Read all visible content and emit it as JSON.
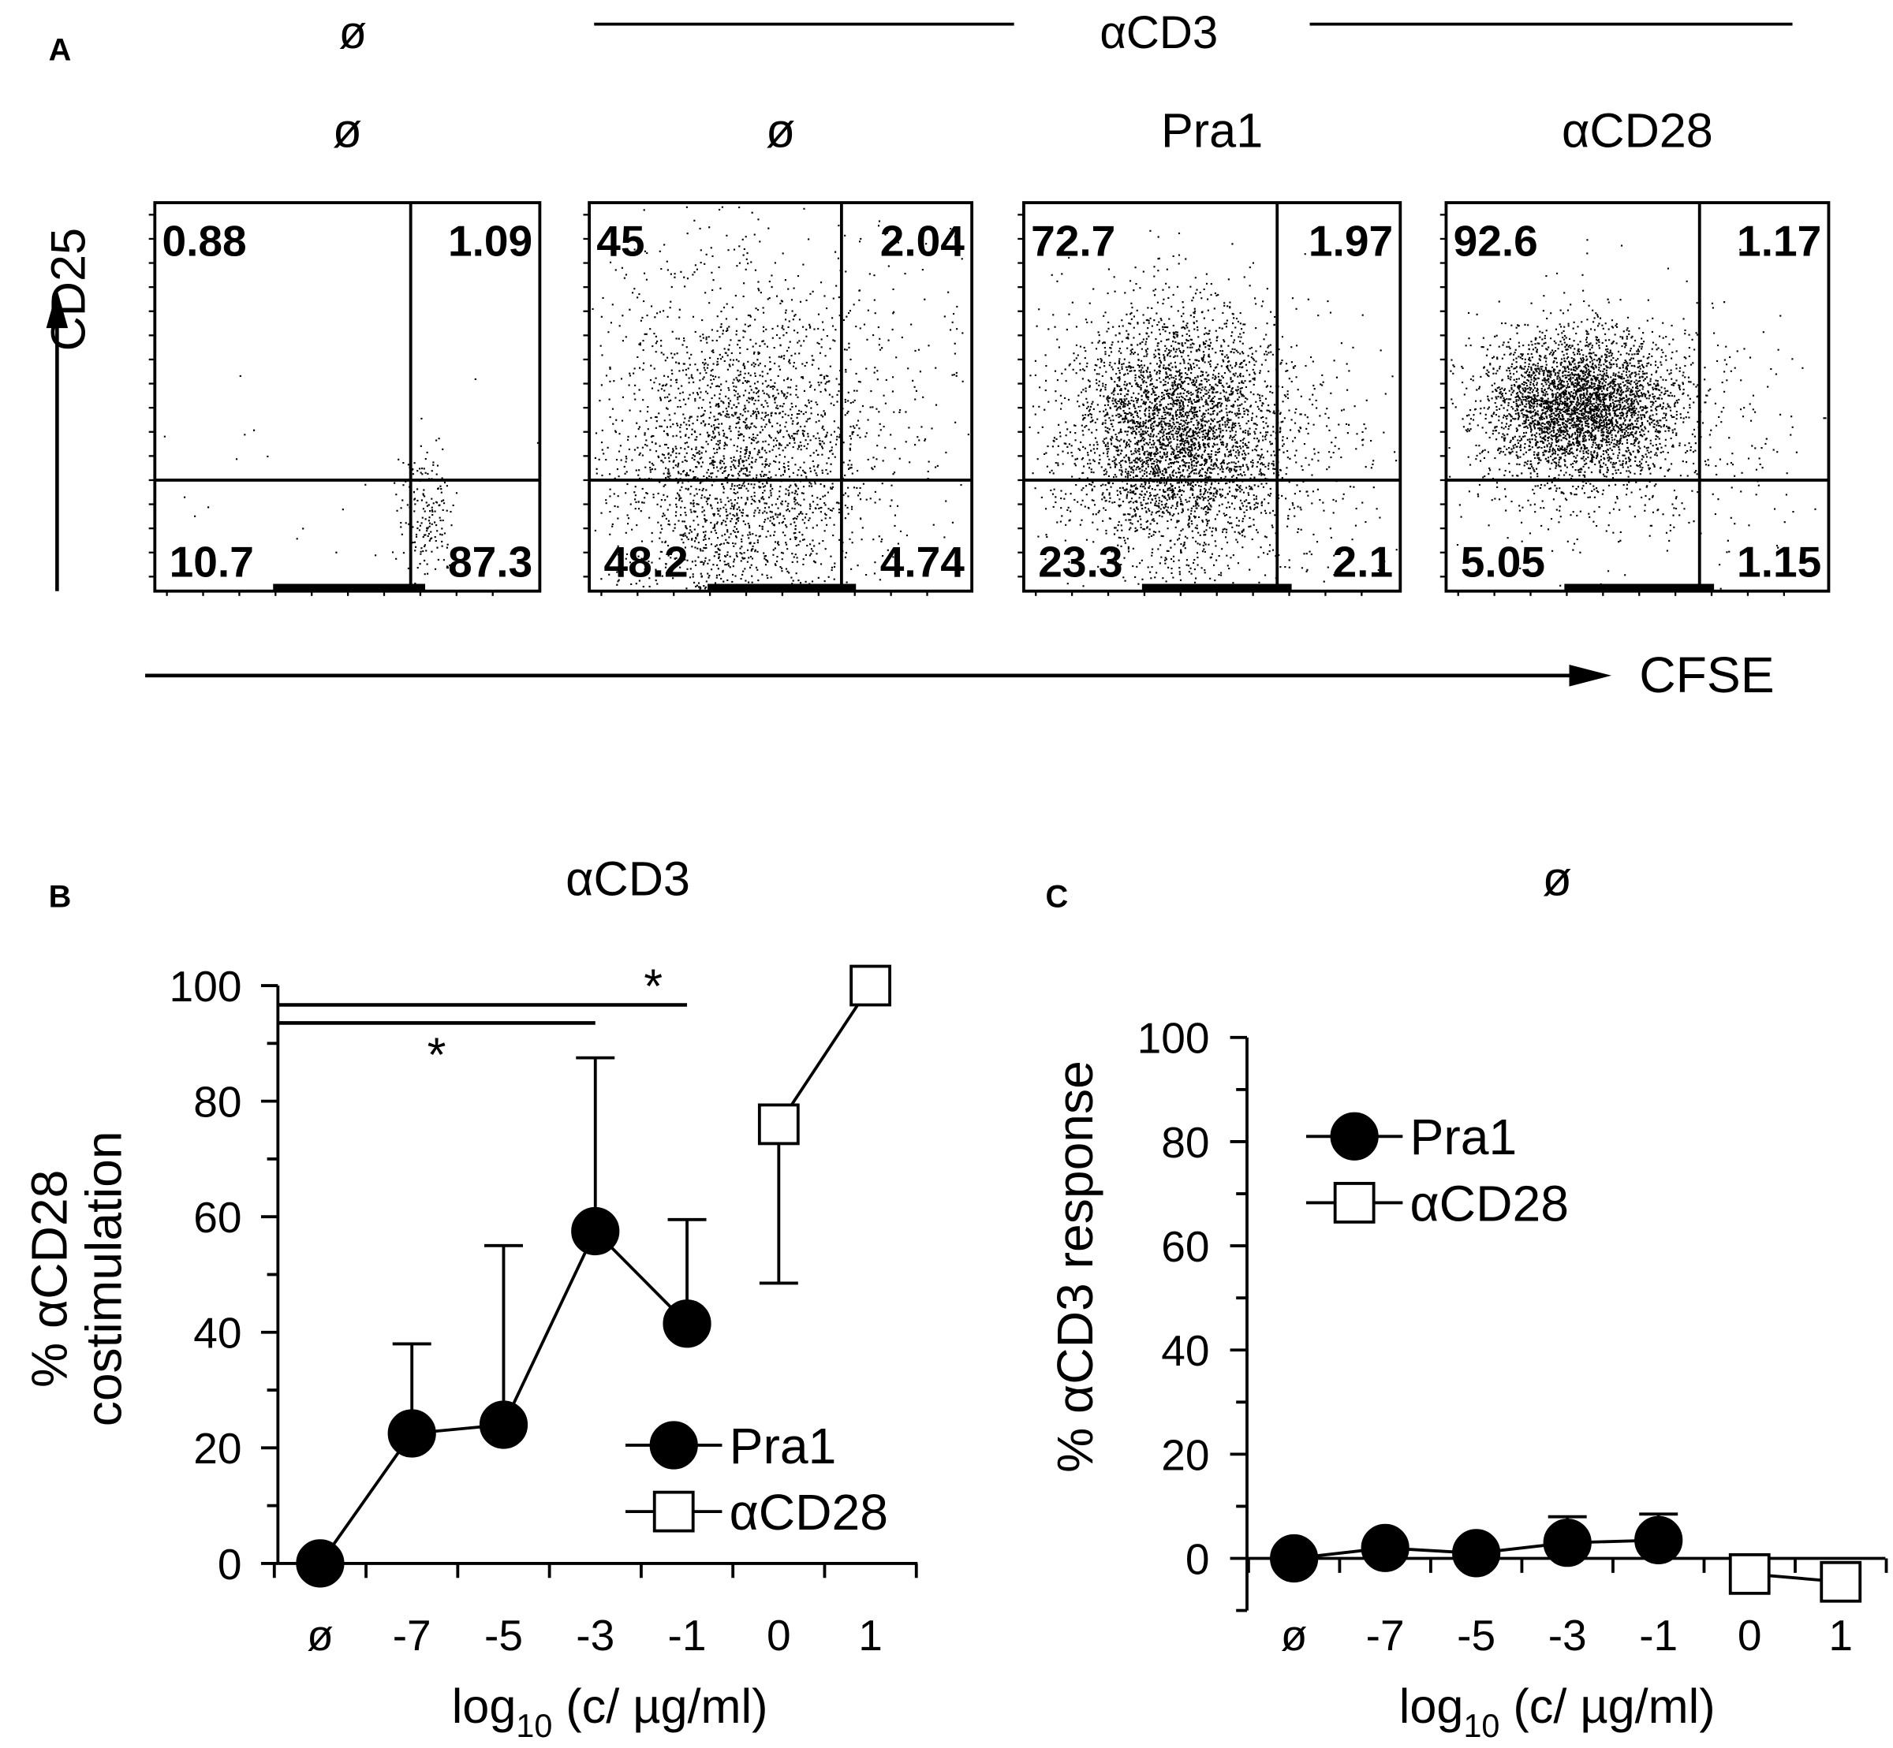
{
  "panel_a": {
    "panel": "A",
    "top_labels": [
      "ø",
      "αCD3"
    ],
    "y_axis_label": "CD25",
    "x_axis_label": "CFSE",
    "plots": [
      {
        "title": "ø",
        "quadrants": {
          "upper_left": 0.88,
          "upper_right": 1.09,
          "lower_left": 10.7,
          "lower_right": 87.3
        }
      },
      {
        "title": "ø",
        "quadrants": {
          "upper_left": 45,
          "upper_right": 2.04,
          "lower_left": 48.2,
          "lower_right": 4.74
        }
      },
      {
        "title": "Pra1",
        "quadrants": {
          "upper_left": 72.7,
          "upper_right": 1.97,
          "lower_left": 23.3,
          "lower_right": 2.1
        }
      },
      {
        "title": "αCD28",
        "quadrants": {
          "upper_left": 92.6,
          "upper_right": 1.17,
          "lower_left": 5.05,
          "lower_right": 1.15
        }
      }
    ]
  },
  "chart_data": [
    {
      "type": "line",
      "panel": "B",
      "title": "αCD3",
      "y_label": [
        "% αCD28",
        "costimulation"
      ],
      "x_label": {
        "main": "log",
        "sub": "10",
        "rest": " (c/ µg/ml)"
      },
      "categories": [
        "ø",
        "-7",
        "-5",
        "-3",
        "-1",
        "0",
        "1"
      ],
      "series": [
        {
          "name": "Pra1",
          "color": "#000000",
          "marker": "circle",
          "error_direction": "up",
          "values": [
            0,
            22.5,
            24,
            57.5,
            41.5,
            null,
            null
          ],
          "errors": [
            null,
            15.5,
            31,
            30,
            18,
            null,
            null
          ]
        },
        {
          "name": "αCD28",
          "color": "#ffffff",
          "marker": "square",
          "error_direction": "down",
          "values": [
            null,
            null,
            null,
            null,
            null,
            76,
            100
          ],
          "errors": [
            null,
            null,
            null,
            null,
            null,
            27.5,
            null
          ]
        }
      ],
      "ylim": [
        0,
        100
      ],
      "yticks": [
        0,
        20,
        40,
        60,
        80,
        100
      ],
      "minor_yticks": [
        10,
        30,
        50,
        70,
        90
      ],
      "legend": "lower right",
      "significance": [
        {
          "label": "*",
          "start": "ø",
          "end": "-1"
        },
        {
          "label": "*",
          "start": "ø",
          "end": "-3"
        }
      ]
    },
    {
      "type": "line",
      "panel": "C",
      "title": "ø",
      "y_label": [
        "% αCD3 response"
      ],
      "x_label": {
        "main": "log",
        "sub": "10",
        "rest": " (c/ µg/ml)"
      },
      "categories": [
        "ø",
        "-7",
        "-5",
        "-3",
        "-1",
        "0",
        "1"
      ],
      "series": [
        {
          "name": "Pra1",
          "color": "#000000",
          "marker": "circle",
          "error_direction": "up",
          "values": [
            0,
            2,
            1,
            3,
            3.5,
            null,
            null
          ],
          "errors": [
            null,
            null,
            null,
            5,
            5,
            null,
            null
          ]
        },
        {
          "name": "αCD28",
          "color": "#ffffff",
          "marker": "square",
          "error_direction": "down",
          "values": [
            null,
            null,
            null,
            null,
            null,
            -3,
            -4.5
          ],
          "errors": [
            null,
            null,
            null,
            null,
            null,
            null,
            null
          ]
        }
      ],
      "ylim": [
        -10,
        100
      ],
      "yticks": [
        0,
        20,
        40,
        60,
        80,
        100
      ],
      "minor_yticks": [
        -10,
        10,
        30,
        50,
        70,
        90
      ],
      "legend": "upper left"
    }
  ]
}
